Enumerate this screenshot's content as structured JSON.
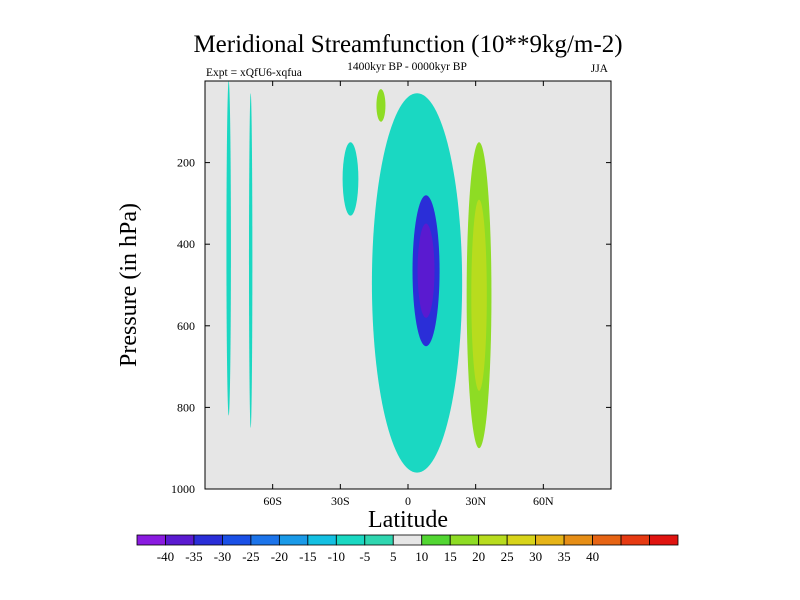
{
  "chart_data": {
    "type": "filled-contour",
    "title": "Meridional Streamfunction (10**9kg/m-2)",
    "subtitle_left": "Expt = xQfU6-xqfua",
    "subtitle_center": "1400kyr BP - 0000kyr BP",
    "subtitle_right": "JJA",
    "xlabel": "Latitude",
    "ylabel": "Pressure (in hPa)",
    "xlim": [
      -90,
      90
    ],
    "ylim": [
      1000,
      0
    ],
    "x_ticks": [
      {
        "value": -60,
        "label": "60S"
      },
      {
        "value": -30,
        "label": "30S"
      },
      {
        "value": 0,
        "label": "0"
      },
      {
        "value": 30,
        "label": "30N"
      },
      {
        "value": 60,
        "label": "60N"
      }
    ],
    "y_ticks": [
      {
        "value": 200,
        "label": "200"
      },
      {
        "value": 400,
        "label": "400"
      },
      {
        "value": 600,
        "label": "600"
      },
      {
        "value": 800,
        "label": "800"
      },
      {
        "value": 1000,
        "label": "1000"
      }
    ],
    "background_color": "#e6e6e6",
    "colorbar": {
      "labels": [
        "-40",
        "-35",
        "-30",
        "-25",
        "-20",
        "-15",
        "-10",
        "-5",
        "5",
        "10",
        "15",
        "20",
        "25",
        "30",
        "35",
        "40"
      ],
      "colors": [
        "#8a1be0",
        "#5a1ad0",
        "#2a2ed8",
        "#1a50e6",
        "#1c74ea",
        "#1a9ae8",
        "#14c0e2",
        "#1ad8c2",
        "#2fd6b0",
        "#e6e6e6",
        "#52d632",
        "#8edc24",
        "#b8dc1e",
        "#d8d41a",
        "#e6b418",
        "#e68e16",
        "#e66414",
        "#e63a12",
        "#e01410"
      ]
    },
    "regions": [
      {
        "name": "sh-high-lat-cell-a",
        "level": -10,
        "lat": [
          -80.5,
          -78.5
        ],
        "p": [
          0,
          820
        ]
      },
      {
        "name": "sh-high-lat-cell-b",
        "level": -10,
        "lat": [
          -70.5,
          -69.0
        ],
        "p": [
          30,
          850
        ]
      },
      {
        "name": "sh-subtropical-patch",
        "level": -10,
        "lat": [
          -29,
          -22
        ],
        "p": [
          150,
          330
        ]
      },
      {
        "name": "tropical-upper-patch",
        "level": 10,
        "lat": [
          -14,
          -10
        ],
        "p": [
          20,
          100
        ]
      },
      {
        "name": "hadley-cell-outer",
        "level": -10,
        "lat": [
          -16,
          24
        ],
        "p": [
          30,
          960
        ]
      },
      {
        "name": "hadley-cell-core",
        "level": -35,
        "lat": [
          2,
          14
        ],
        "p": [
          280,
          650
        ],
        "min_value": -40
      },
      {
        "name": "nh-positive-cell",
        "level": 10,
        "lat": [
          26,
          37
        ],
        "p": [
          150,
          900
        ],
        "max_value": 15
      }
    ]
  }
}
